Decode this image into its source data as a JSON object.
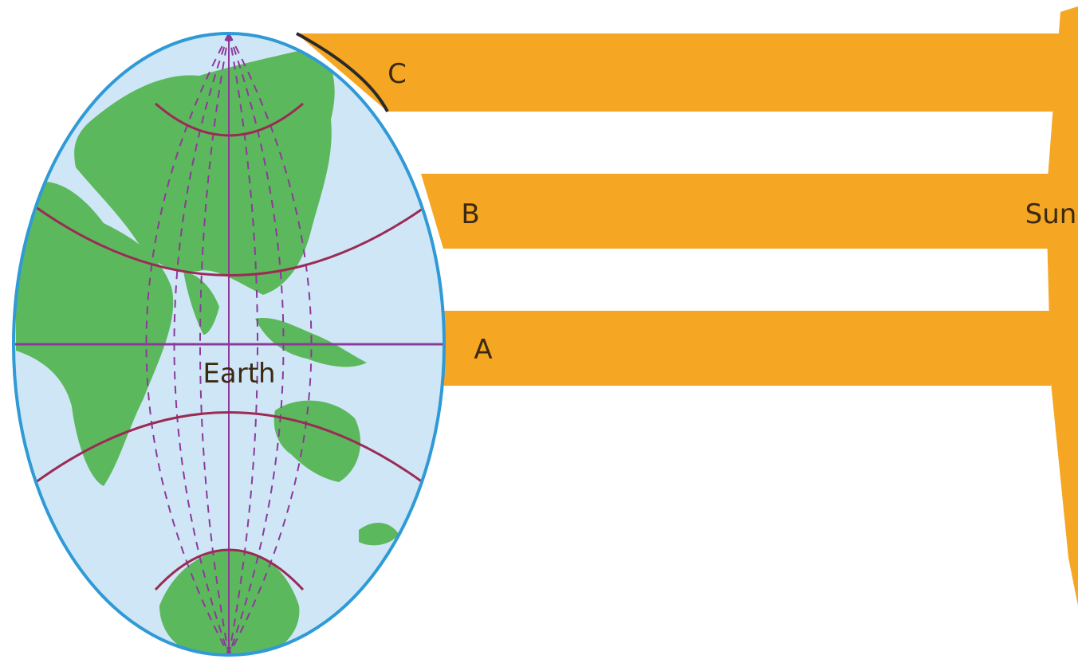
{
  "diagram": {
    "earth_label": "Earth",
    "sun_label": "Sun",
    "rays": [
      {
        "id": "C",
        "label": "C"
      },
      {
        "id": "B",
        "label": "B"
      },
      {
        "id": "A",
        "label": "A"
      }
    ]
  },
  "colors": {
    "ocean": "#cfe6f7",
    "globe_outline": "#2f9ad6",
    "land": "#5cb85c",
    "sunlight": "#f5a623",
    "meridian": "#8b3a9a",
    "latitude_circle": "#9b2b55"
  }
}
